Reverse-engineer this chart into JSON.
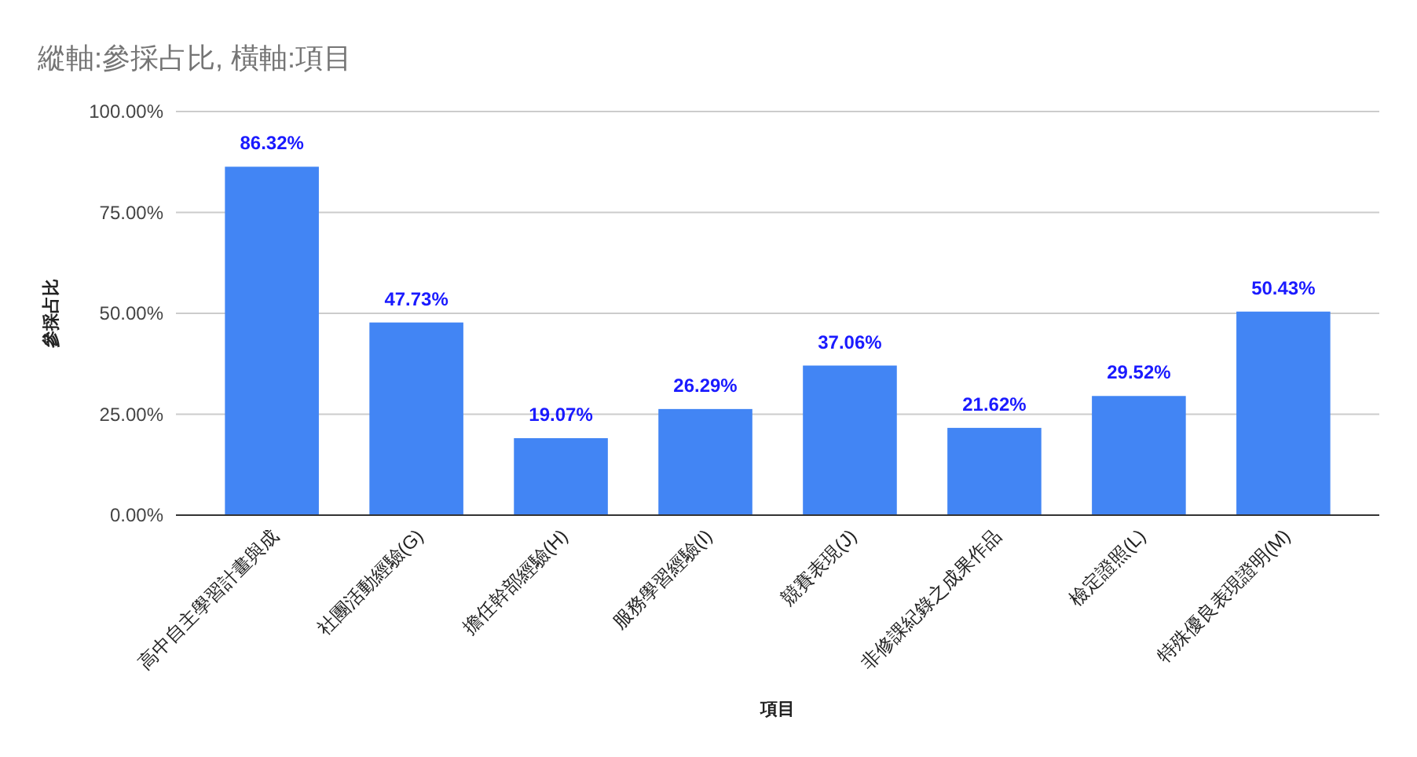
{
  "chart_data": {
    "type": "bar",
    "title": "縱軸:參採占比, 橫軸:項目",
    "xlabel": "項目",
    "ylabel": "參採占比",
    "categories": [
      "高中自主學習計畫與成",
      "社團活動經驗(G)",
      "擔任幹部經驗(H)",
      "服務學習經驗(I)",
      "競賽表現(J)",
      "非修課紀錄之成果作品",
      "檢定證照(L)",
      "特殊優良表現證明(M)"
    ],
    "values": [
      86.32,
      47.73,
      19.07,
      26.29,
      37.06,
      21.62,
      29.52,
      50.43
    ],
    "value_labels": [
      "86.32%",
      "47.73%",
      "19.07%",
      "26.29%",
      "37.06%",
      "21.62%",
      "29.52%",
      "50.43%"
    ],
    "color": "#4285f4",
    "ylim": [
      0,
      100
    ],
    "yticks": [
      {
        "value": 0,
        "label": "0.00%"
      },
      {
        "value": 25,
        "label": "25.00%"
      },
      {
        "value": 50,
        "label": "50.00%"
      },
      {
        "value": 75,
        "label": "75.00%"
      },
      {
        "value": 100,
        "label": "100.00%"
      }
    ],
    "grid": "y"
  }
}
